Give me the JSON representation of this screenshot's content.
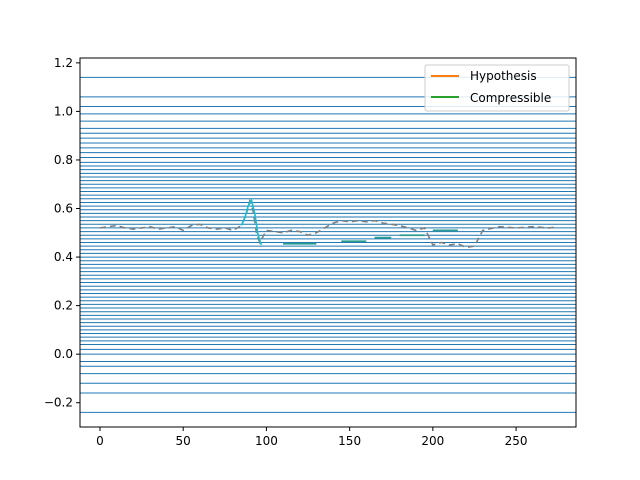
{
  "chart_data": {
    "type": "line",
    "xlim": [
      -12,
      286
    ],
    "ylim": [
      -0.3,
      1.22
    ],
    "x_ticks": [
      0,
      50,
      100,
      150,
      200,
      250
    ],
    "x_tick_labels": [
      "0",
      "50",
      "100",
      "150",
      "200",
      "250"
    ],
    "y_ticks": [
      -0.2,
      0.0,
      0.2,
      0.4,
      0.6,
      0.8,
      1.0,
      1.2
    ],
    "y_tick_labels": [
      "−0.2",
      "0.0",
      "0.2",
      "0.4",
      "0.6",
      "0.8",
      "1.0",
      "1.2"
    ],
    "grid": false,
    "legend_position": "top-right",
    "horizontal_lines": {
      "color": "#1f77b4",
      "y_values": [
        1.14,
        1.06,
        1.02,
        0.99,
        0.96,
        0.93,
        0.91,
        0.89,
        0.87,
        0.85,
        0.83,
        0.81,
        0.79,
        0.775,
        0.76,
        0.745,
        0.73,
        0.715,
        0.7,
        0.685,
        0.67,
        0.655,
        0.64,
        0.625,
        0.61,
        0.595,
        0.58,
        0.565,
        0.55,
        0.535,
        0.52,
        0.505,
        0.49,
        0.475,
        0.46,
        0.445,
        0.43,
        0.415,
        0.4,
        0.385,
        0.37,
        0.355,
        0.34,
        0.325,
        0.31,
        0.295,
        0.28,
        0.265,
        0.25,
        0.235,
        0.22,
        0.205,
        0.19,
        0.175,
        0.16,
        0.145,
        0.13,
        0.115,
        0.1,
        0.085,
        0.07,
        0.055,
        0.04,
        0.02,
        0.0,
        -0.03,
        -0.05,
        -0.08,
        -0.12,
        -0.16,
        -0.24
      ]
    },
    "series": [
      {
        "name": "",
        "color": "#7f7f7f",
        "dashed": true,
        "x": [
          0,
          5,
          10,
          15,
          20,
          25,
          30,
          35,
          40,
          45,
          50,
          55,
          60,
          65,
          70,
          75,
          80,
          85,
          88,
          90,
          92,
          94,
          96,
          100,
          105,
          110,
          115,
          120,
          125,
          130,
          135,
          140,
          145,
          150,
          155,
          160,
          165,
          170,
          175,
          180,
          185,
          190,
          195,
          200,
          205,
          210,
          215,
          220,
          225,
          230,
          240,
          250,
          260,
          270,
          275
        ],
        "y": [
          0.52,
          0.525,
          0.53,
          0.52,
          0.515,
          0.52,
          0.525,
          0.515,
          0.52,
          0.525,
          0.51,
          0.53,
          0.535,
          0.52,
          0.515,
          0.52,
          0.51,
          0.53,
          0.58,
          0.63,
          0.59,
          0.5,
          0.46,
          0.51,
          0.505,
          0.5,
          0.51,
          0.505,
          0.49,
          0.5,
          0.52,
          0.54,
          0.55,
          0.545,
          0.55,
          0.545,
          0.55,
          0.54,
          0.535,
          0.53,
          0.52,
          0.51,
          0.52,
          0.45,
          0.46,
          0.45,
          0.455,
          0.44,
          0.445,
          0.51,
          0.525,
          0.52,
          0.525,
          0.52,
          0.525
        ]
      },
      {
        "name": "",
        "color": "#17becf",
        "dashed": false,
        "x": [
          85,
          87,
          89,
          91,
          93,
          95,
          97
        ],
        "y": [
          0.53,
          0.56,
          0.61,
          0.635,
          0.58,
          0.49,
          0.45
        ]
      },
      {
        "name": "",
        "color": "#2a9d8f",
        "segments": true,
        "x": [
          110,
          130,
          145,
          160,
          165,
          175,
          180,
          195,
          200,
          215
        ],
        "y": [
          0.455,
          0.455,
          0.465,
          0.465,
          0.48,
          0.48,
          0.49,
          0.49,
          0.51,
          0.51
        ]
      }
    ],
    "legend": [
      {
        "label": "Hypothesis",
        "color": "#ff7f0e"
      },
      {
        "label": "Compressible",
        "color": "#2ca02c"
      }
    ]
  }
}
